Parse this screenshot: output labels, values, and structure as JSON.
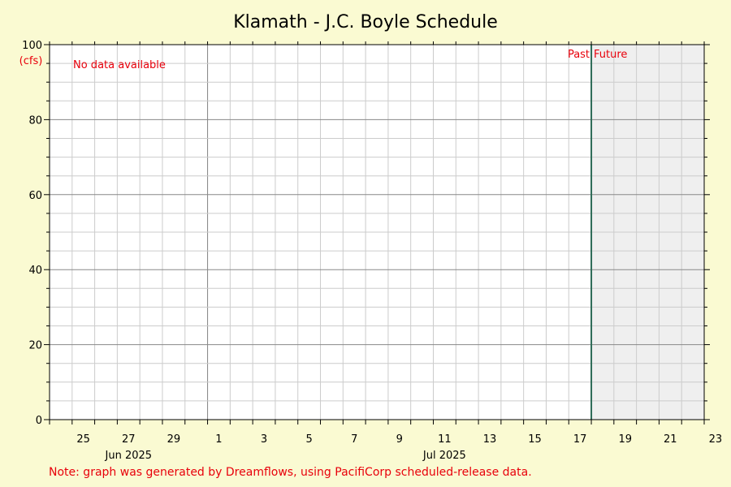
{
  "chart_data": {
    "type": "line",
    "title": "Klamath - J.C. Boyle Schedule",
    "ylabel": "(cfs)",
    "ylim": [
      0,
      100
    ],
    "y_major_ticks": [
      0,
      20,
      40,
      60,
      80,
      100
    ],
    "y_minor_step": 5,
    "x_start": "2025-06-24",
    "x_end": "2025-07-23",
    "x_tick_labels": [
      {
        "date": "2025-06-25",
        "label": "25"
      },
      {
        "date": "2025-06-27",
        "label": "27"
      },
      {
        "date": "2025-06-29",
        "label": "29"
      },
      {
        "date": "2025-07-01",
        "label": "1"
      },
      {
        "date": "2025-07-03",
        "label": "3"
      },
      {
        "date": "2025-07-05",
        "label": "5"
      },
      {
        "date": "2025-07-07",
        "label": "7"
      },
      {
        "date": "2025-07-09",
        "label": "9"
      },
      {
        "date": "2025-07-11",
        "label": "11"
      },
      {
        "date": "2025-07-13",
        "label": "13"
      },
      {
        "date": "2025-07-15",
        "label": "15"
      },
      {
        "date": "2025-07-17",
        "label": "17"
      },
      {
        "date": "2025-07-19",
        "label": "19"
      },
      {
        "date": "2025-07-21",
        "label": "21"
      },
      {
        "date": "2025-07-23",
        "label": "23"
      }
    ],
    "month_labels": [
      {
        "date": "2025-06-27",
        "label": "Jun 2025"
      },
      {
        "date": "2025-07-11",
        "label": "Jul 2025"
      }
    ],
    "month_boundaries": [
      "2025-07-01"
    ],
    "now": "2025-07-18",
    "past_label": "Past",
    "future_label": "Future",
    "no_data_text": "No data available",
    "series": [],
    "grid": true,
    "colors": {
      "background": "#fafad2",
      "plot_background": "#ffffff",
      "future_shade": "#efefef",
      "now_line": "#2e6b57",
      "annotation": "#e8000b",
      "grid_minor": "#cccccc",
      "grid_major": "#888888"
    }
  },
  "footer_note": "Note: graph was generated by Dreamflows, using PacifiCorp scheduled-release data."
}
